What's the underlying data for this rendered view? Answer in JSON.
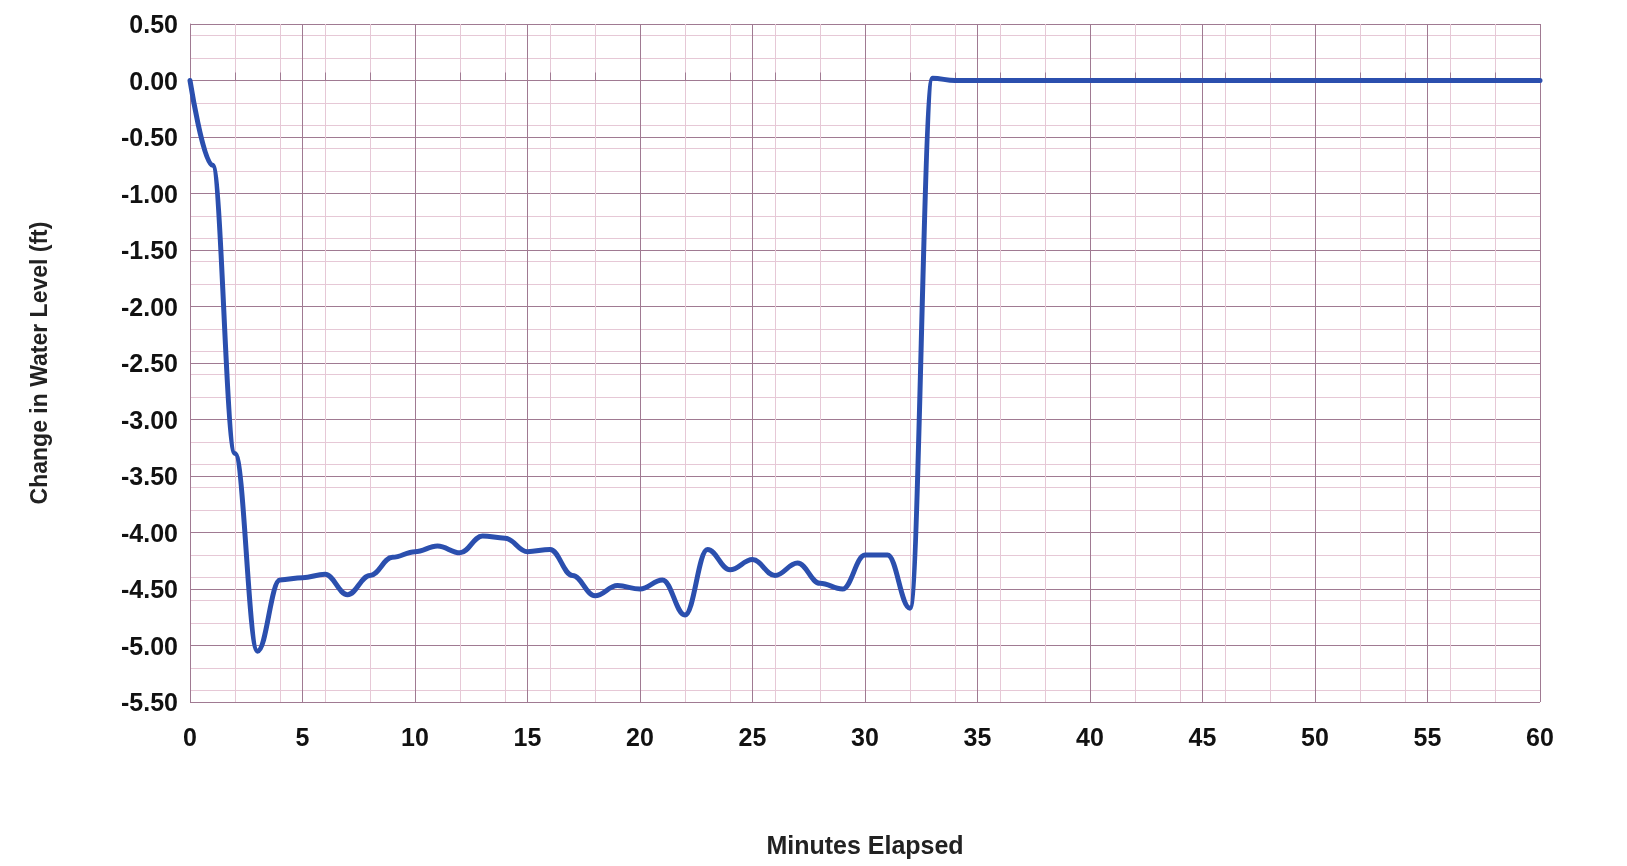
{
  "chart_data": {
    "type": "line",
    "xlabel": "Minutes Elapsed",
    "ylabel": "Change in Water Level (ft)",
    "x": [
      0,
      1,
      2,
      3,
      4,
      5,
      6,
      7,
      8,
      9,
      10,
      11,
      12,
      13,
      14,
      15,
      16,
      17,
      18,
      19,
      20,
      21,
      22,
      23,
      24,
      25,
      26,
      27,
      28,
      29,
      30,
      31,
      32,
      33,
      34,
      35,
      40,
      45,
      50,
      55,
      60
    ],
    "series": [
      {
        "color": "#2b4fae",
        "values": [
          0,
          -0.75,
          -3.3,
          -5.05,
          -4.42,
          -4.4,
          -4.37,
          -4.55,
          -4.38,
          -4.22,
          -4.17,
          -4.12,
          -4.18,
          -4.03,
          -4.05,
          -4.17,
          -4.15,
          -4.38,
          -4.56,
          -4.47,
          -4.5,
          -4.42,
          -4.73,
          -4.15,
          -4.33,
          -4.24,
          -4.38,
          -4.27,
          -4.45,
          -4.5,
          -4.2,
          -4.2,
          -4.67,
          0.02,
          0,
          0,
          0,
          0,
          0,
          0,
          0
        ]
      }
    ],
    "xlim": [
      0,
      60
    ],
    "xticks": [
      0,
      5,
      10,
      15,
      20,
      25,
      30,
      35,
      40,
      45,
      50,
      55,
      60
    ],
    "ylim": [
      -5.5,
      0.5
    ],
    "yticks": [
      {
        "value": -5.5,
        "label": "-5.50"
      },
      {
        "value": -5,
        "label": "-5.00"
      },
      {
        "value": -4.5,
        "label": "-4.50"
      },
      {
        "value": -4,
        "label": "-4.00"
      },
      {
        "value": -3.5,
        "label": "-3.50"
      },
      {
        "value": -3,
        "label": "-3.00"
      },
      {
        "value": -2.5,
        "label": "-2.50"
      },
      {
        "value": -2,
        "label": "-2.00"
      },
      {
        "value": -1.5,
        "label": "-1.50"
      },
      {
        "value": -1,
        "label": "-1.00"
      },
      {
        "value": -0.5,
        "label": "-0.50"
      },
      {
        "value": 0,
        "label": "0.00"
      },
      {
        "value": 0.5,
        "label": "0.50"
      }
    ],
    "grid": true,
    "marker": "none",
    "line_style": "solid"
  }
}
